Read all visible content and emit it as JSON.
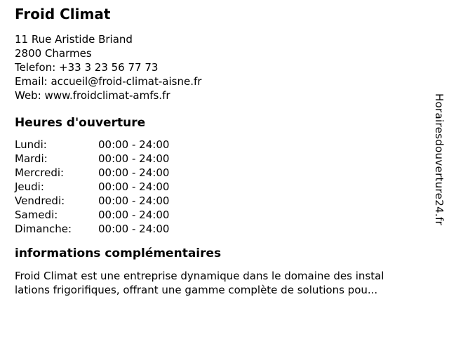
{
  "header": {
    "title": "Froid Climat"
  },
  "contact": {
    "street": "11 Rue Aristide Briand",
    "city": "2800 Charmes",
    "phone_label": "Telefon:",
    "phone_value": "+33 3 23 56 77 73",
    "email_label": "Email:",
    "email_value": "accueil@froid-climat-aisne.fr",
    "web_label": "Web:",
    "web_value": "www.froidclimat-amfs.fr"
  },
  "hours": {
    "heading": "Heures d'ouverture",
    "rows": [
      {
        "day": "Lundi:",
        "time": "00:00 - 24:00"
      },
      {
        "day": "Mardi:",
        "time": "00:00 - 24:00"
      },
      {
        "day": "Mercredi:",
        "time": "00:00 - 24:00"
      },
      {
        "day": "Jeudi:",
        "time": "00:00 - 24:00"
      },
      {
        "day": "Vendredi:",
        "time": "00:00 - 24:00"
      },
      {
        "day": "Samedi:",
        "time": "00:00 - 24:00"
      },
      {
        "day": "Dimanche:",
        "time": "00:00 - 24:00"
      }
    ]
  },
  "info": {
    "heading": "informations complémentaires",
    "lines": [
      "Froid Climat est une entreprise dynamique dans le domaine des instal",
      "lations frigorifiques, offrant une gamme complète de solutions pou..."
    ]
  },
  "watermark": {
    "text": "Horairesdouverture24.fr"
  },
  "colors": {
    "text": "#000000",
    "background": "#ffffff"
  }
}
